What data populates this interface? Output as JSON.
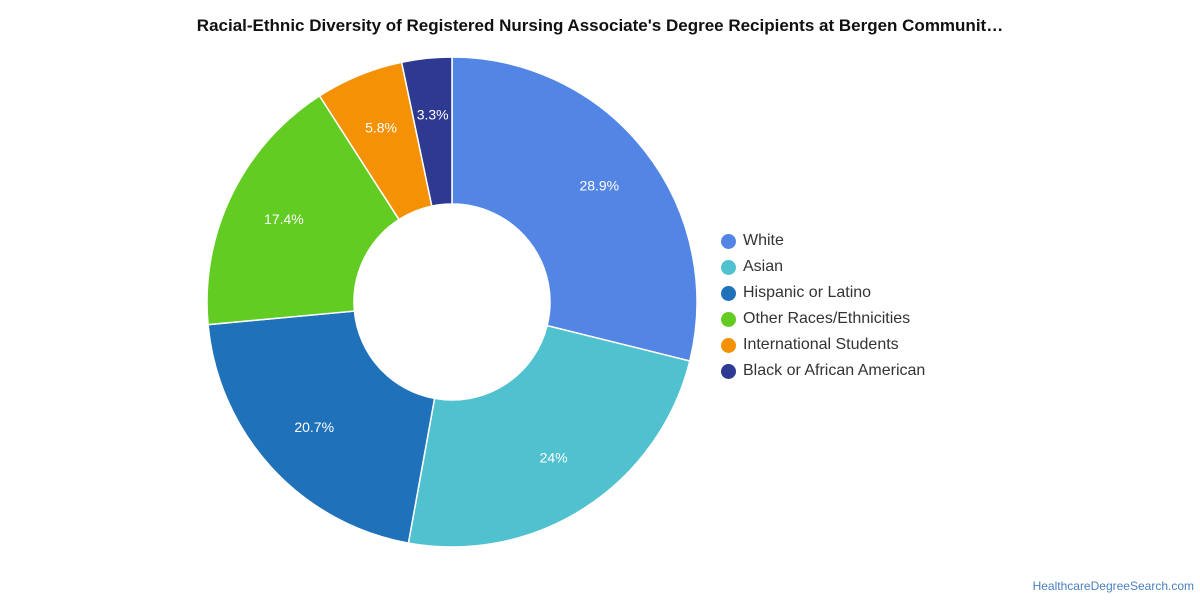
{
  "chart_data": {
    "type": "pie",
    "donut": true,
    "title": "Racial-Ethnic Diversity of Registered Nursing Associate's Degree Recipients at Bergen Communit…",
    "slices": [
      {
        "label": "White",
        "value": 28.9,
        "display": "28.9%",
        "color": "#5386e4"
      },
      {
        "label": "Asian",
        "value": 24,
        "display": "24%",
        "color": "#50c1ce"
      },
      {
        "label": "Hispanic or Latino",
        "value": 20.7,
        "display": "20.7%",
        "color": "#1f72ba"
      },
      {
        "label": "Other Races/Ethnicities",
        "value": 17.4,
        "display": "17.4%",
        "color": "#63cc23"
      },
      {
        "label": "International Students",
        "value": 5.8,
        "display": "5.8%",
        "color": "#f59104"
      },
      {
        "label": "Black or African American",
        "value": 3.3,
        "display": "3.3%",
        "color": "#2e3991"
      }
    ],
    "legend_position": "right"
  },
  "source_label": "HealthcareDegreeSearch.com"
}
